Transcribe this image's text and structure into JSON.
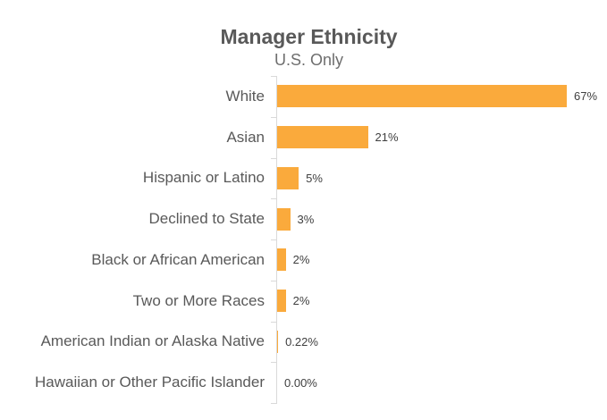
{
  "chart_data": {
    "type": "bar",
    "orientation": "horizontal",
    "title": "Manager Ethnicity",
    "subtitle": "U.S. Only",
    "categories": [
      "White",
      "Asian",
      "Hispanic or Latino",
      "Declined to State",
      "Black or African American",
      "Two or More Races",
      "American Indian or Alaska Native",
      "Hawaiian or Other Pacific Islander"
    ],
    "values": [
      67,
      21,
      5,
      3,
      2,
      2,
      0.22,
      0
    ],
    "value_labels": [
      "67%",
      "21%",
      "5%",
      "3%",
      "2%",
      "2%",
      "0.22%",
      "0.00%"
    ],
    "xlim": [
      0,
      70
    ],
    "grid": "off",
    "legend": "none",
    "data_labels": "outside-end"
  },
  "colors": {
    "bar": "#faaa3c",
    "axis": "#d9d9d9",
    "title_text": "#595959",
    "subtitle_text": "#6e6e6e",
    "category_text": "#595959",
    "value_text": "#404040",
    "background": "#ffffff"
  }
}
